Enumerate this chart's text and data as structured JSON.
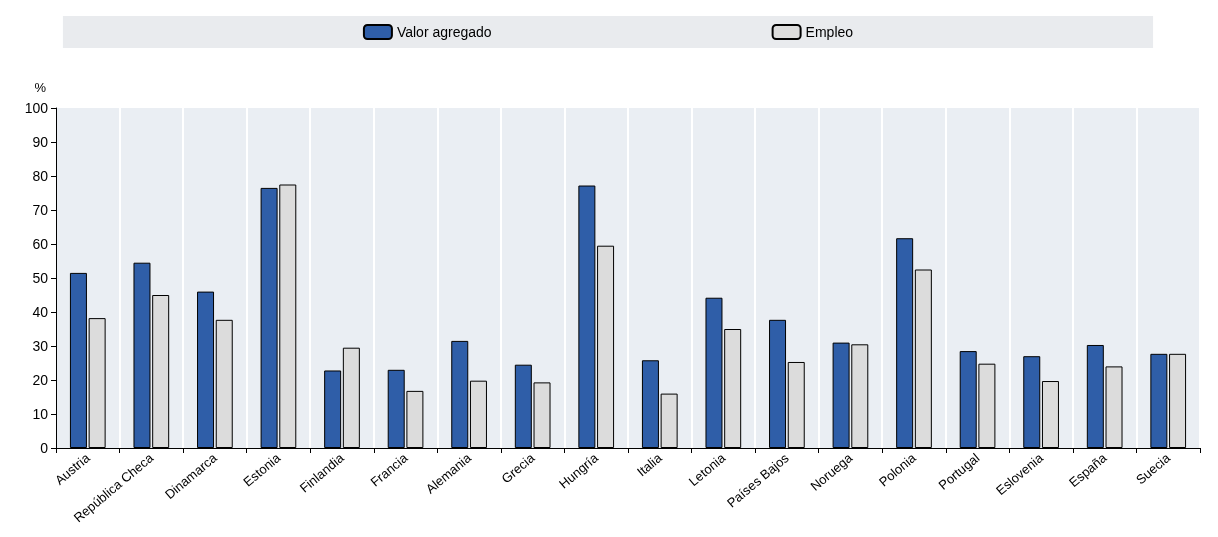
{
  "chart_data": {
    "type": "bar",
    "ylabel": "%",
    "categories": [
      "Austria",
      "República Checa",
      "Dinamarca",
      "Estonia",
      "Finlandia",
      "Francia",
      "Alemania",
      "Grecia",
      "Hungría",
      "Italia",
      "Letonia",
      "Países Bajos",
      "Noruega",
      "Polonia",
      "Portugal",
      "Eslovenia",
      "España",
      "Suecia"
    ],
    "series": [
      {
        "name": "Valor agregado",
        "color": "#2f5ea8",
        "values": [
          51.5,
          54.5,
          46,
          76.5,
          22.8,
          23,
          31.5,
          24.5,
          77.2,
          25.8,
          44.2,
          37.7,
          31,
          61.7,
          28.5,
          27,
          30.3,
          27.7
        ]
      },
      {
        "name": "Empleo",
        "color": "#dcdcdc",
        "values": [
          38.2,
          45,
          37.7,
          77.5,
          29.5,
          16.8,
          19.8,
          19.3,
          59.5,
          16,
          35,
          25.3,
          30.5,
          52.5,
          24.8,
          19.7,
          24,
          27.7
        ]
      }
    ],
    "ylim": [
      0,
      100
    ],
    "yticks": [
      0,
      10,
      20,
      30,
      40,
      50,
      60,
      70,
      80,
      90,
      100
    ],
    "grid": "x",
    "legend": "top"
  }
}
